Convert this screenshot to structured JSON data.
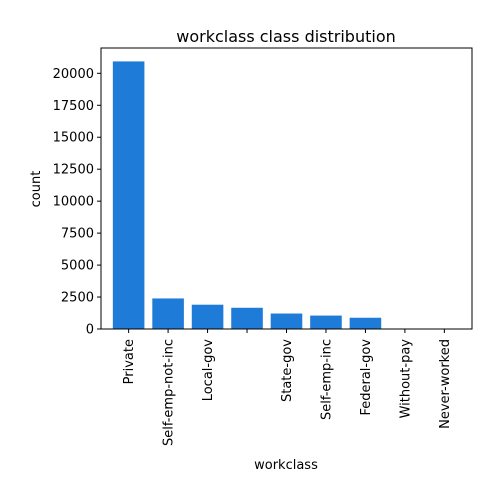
{
  "chart_data": {
    "type": "bar",
    "title": "workclass class distribution",
    "xlabel": "workclass",
    "ylabel": "count",
    "categories": [
      "Private",
      "Self-emp-not-inc",
      "Local-gov",
      "",
      "State-gov",
      "Self-emp-inc",
      "Federal-gov",
      "Without-pay",
      "Never-worked"
    ],
    "values": [
      20930,
      2390,
      1900,
      1660,
      1210,
      1050,
      880,
      14,
      7
    ],
    "ylim": [
      0,
      21980
    ],
    "yticks": [
      0,
      2500,
      5000,
      7500,
      10000,
      12500,
      15000,
      17500,
      20000
    ],
    "ytick_labels": [
      "0",
      "2500",
      "5000",
      "7500",
      "10000",
      "12500",
      "15000",
      "17500",
      "20000"
    ],
    "bar_color": "#1f7bd8",
    "grid": false,
    "legend": "none"
  }
}
